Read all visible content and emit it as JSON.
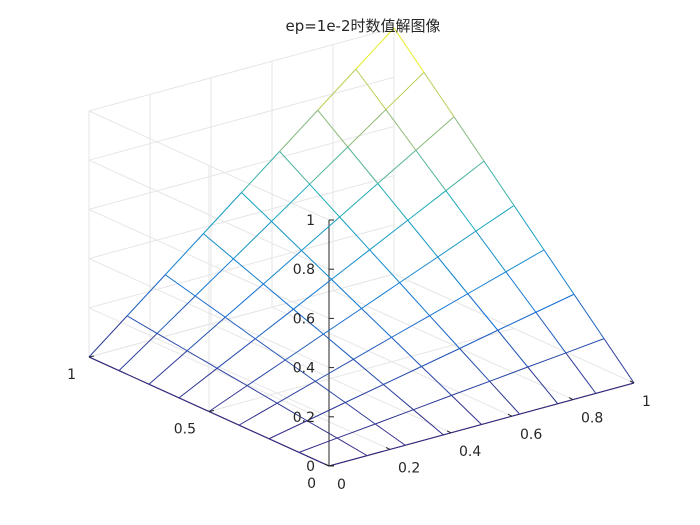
{
  "chart_data": {
    "type": "surface",
    "title": "ep=1e-2时数值解图像",
    "x": [
      0,
      0.125,
      0.25,
      0.375,
      0.5,
      0.625,
      0.75,
      0.875,
      1
    ],
    "y": [
      0,
      0.125,
      0.25,
      0.375,
      0.5,
      0.625,
      0.75,
      0.875,
      1
    ],
    "z_rows_by_y": [
      [
        0,
        0,
        0,
        0,
        0,
        0,
        0,
        0,
        0
      ],
      [
        0,
        0.016,
        0.031,
        0.047,
        0.063,
        0.078,
        0.094,
        0.109,
        0.125
      ],
      [
        0,
        0.031,
        0.063,
        0.094,
        0.125,
        0.156,
        0.188,
        0.219,
        0.25
      ],
      [
        0,
        0.047,
        0.094,
        0.141,
        0.188,
        0.234,
        0.281,
        0.328,
        0.375
      ],
      [
        0,
        0.063,
        0.125,
        0.188,
        0.25,
        0.313,
        0.375,
        0.438,
        0.5
      ],
      [
        0,
        0.078,
        0.156,
        0.234,
        0.313,
        0.391,
        0.469,
        0.547,
        0.625
      ],
      [
        0,
        0.094,
        0.188,
        0.281,
        0.375,
        0.469,
        0.563,
        0.656,
        0.75
      ],
      [
        0,
        0.109,
        0.219,
        0.328,
        0.438,
        0.547,
        0.656,
        0.766,
        0.875
      ],
      [
        0,
        0.125,
        0.25,
        0.375,
        0.5,
        0.625,
        0.75,
        0.875,
        1
      ]
    ],
    "xlim": [
      0,
      1
    ],
    "ylim": [
      0,
      1
    ],
    "zlim": [
      0,
      1
    ],
    "xticks": [
      "0",
      "0.2",
      "0.4",
      "0.6",
      "0.8",
      "1"
    ],
    "yticks": [
      "0",
      "0.5",
      "1"
    ],
    "zticks": [
      "0",
      "0.2",
      "0.4",
      "0.6",
      "0.8",
      "1"
    ],
    "colormap": "parula",
    "grid": true,
    "box": false
  }
}
